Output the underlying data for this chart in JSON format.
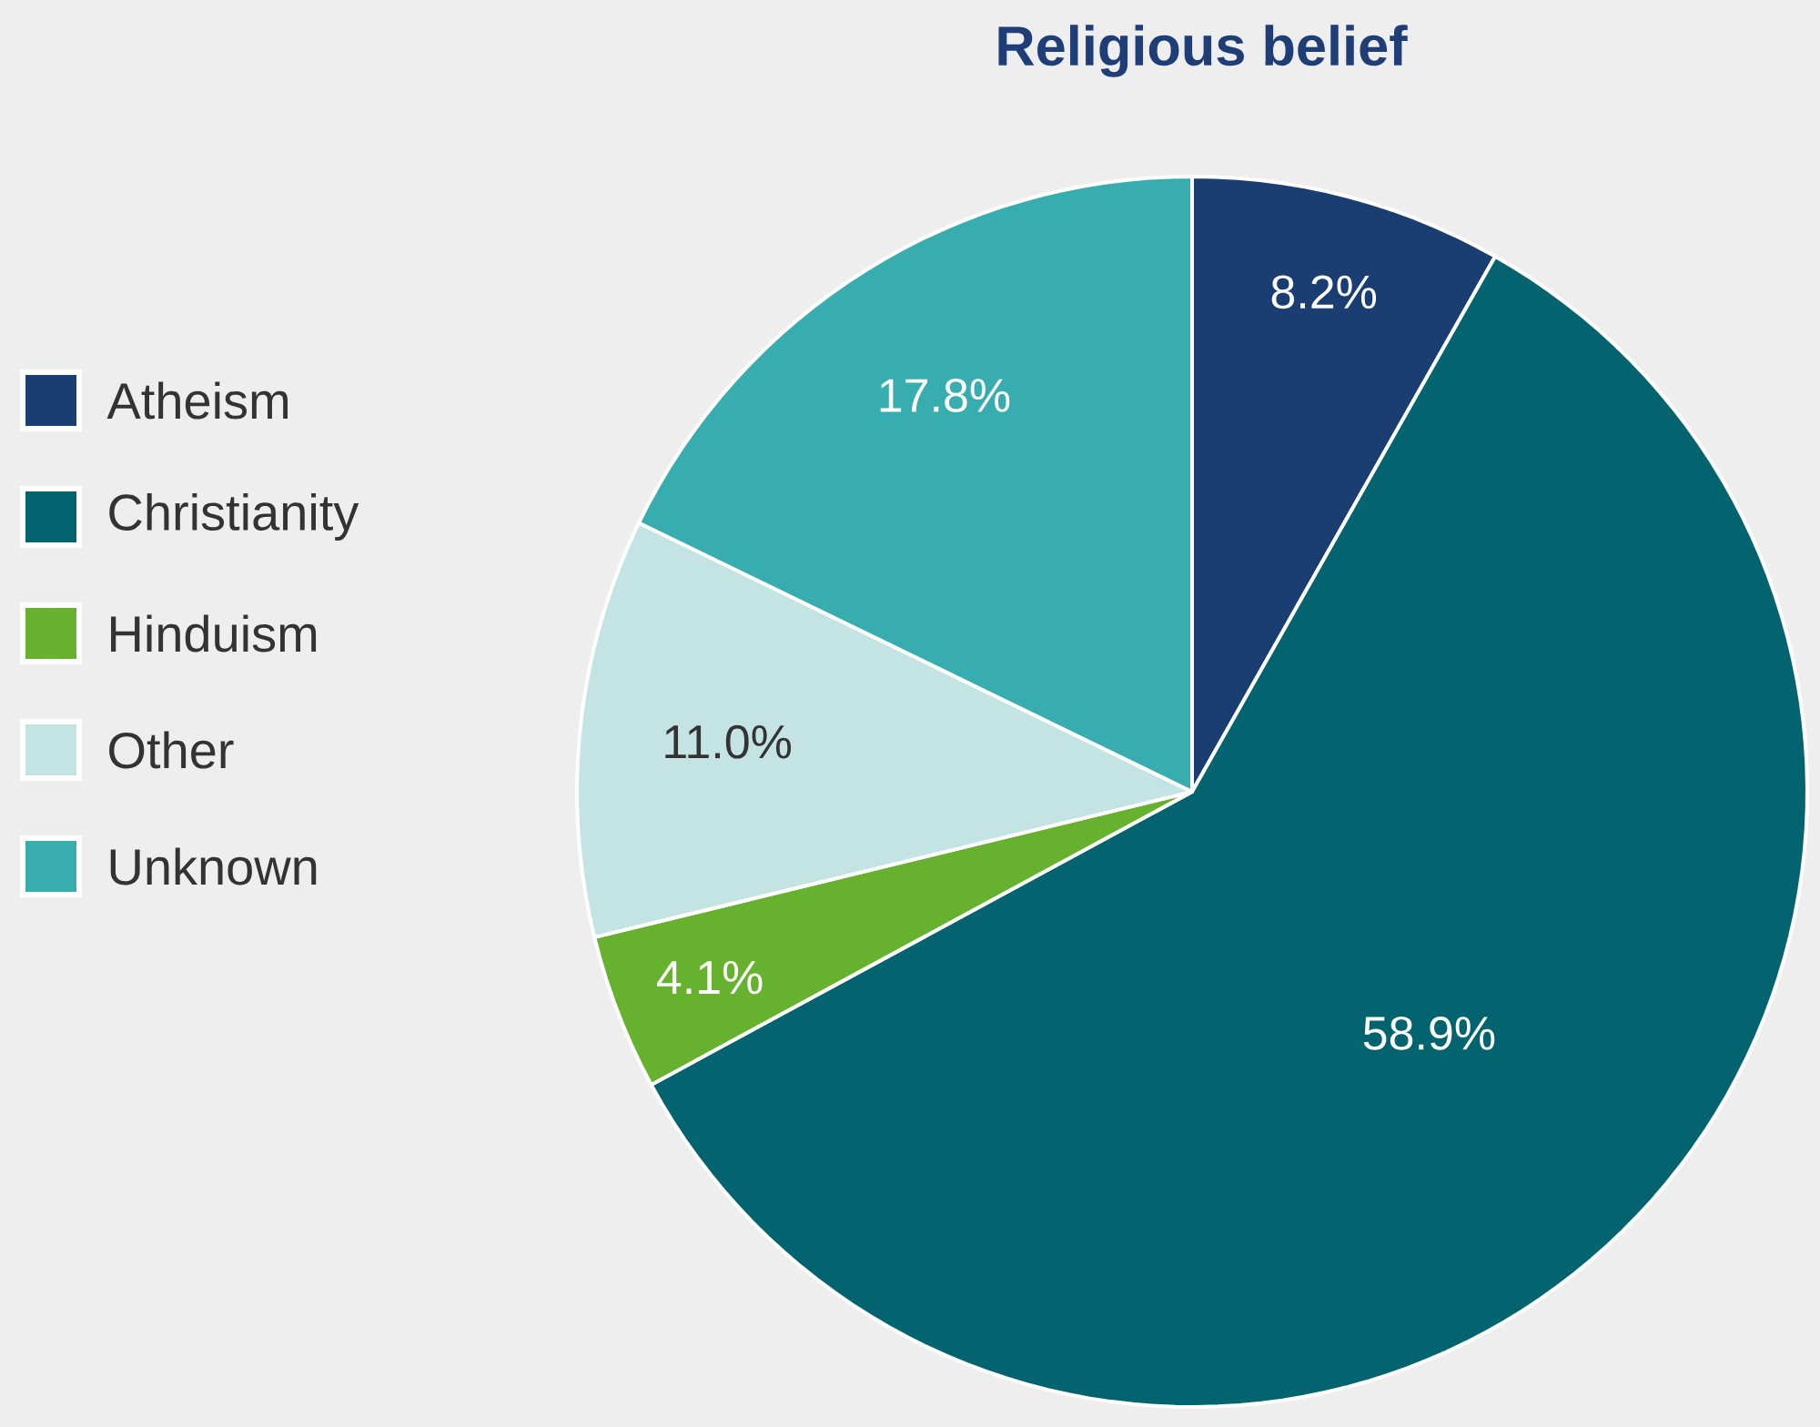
{
  "chart_data": {
    "type": "pie",
    "title": "Religious belief",
    "categories": [
      "Atheism",
      "Christianity",
      "Hinduism",
      "Other",
      "Unknown"
    ],
    "values": [
      8.2,
      58.9,
      4.1,
      11.0,
      17.8
    ],
    "colors": [
      "#1a3e72",
      "#036470",
      "#66b22f",
      "#c4e4e4",
      "#37adb0"
    ],
    "value_labels": [
      "8.2%",
      "58.9%",
      "4.1%",
      "11.0%",
      "17.8%"
    ],
    "legend": "left"
  }
}
